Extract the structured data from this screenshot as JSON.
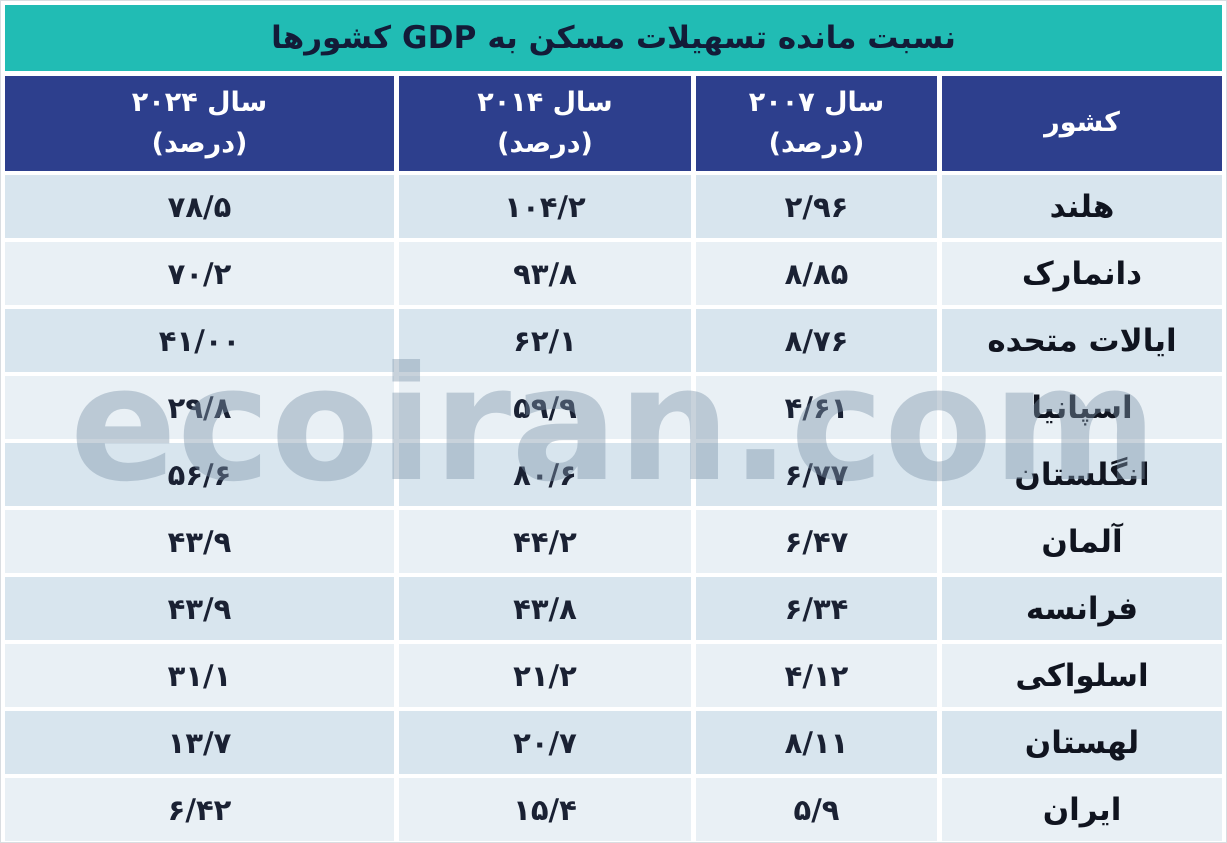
{
  "title": "نسبت مانده تسهیلات مسکن به GDP کشورها",
  "watermark": "ecoiran.com",
  "colors": {
    "title_bg": "#21bcb4",
    "header_bg": "#2d3f8d",
    "row_odd_bg": "#d8e5ee",
    "row_even_bg": "#e9f0f5",
    "title_text": "#131b38",
    "header_text": "#ffffff",
    "cell_text": "#1a2133",
    "country_text": "#10141f",
    "watermark_text": "#7e95aa"
  },
  "table": {
    "columns": [
      {
        "label": "کشور",
        "sublabel": ""
      },
      {
        "label": "سال ۲۰۰۷",
        "sublabel": "(درصد)"
      },
      {
        "label": "سال ۲۰۱۴",
        "sublabel": "(درصد)"
      },
      {
        "label": "سال ۲۰۲۴",
        "sublabel": "(درصد)"
      }
    ],
    "rows": [
      {
        "country": "هلند",
        "y2007": "۲/۹۶",
        "y2014": "۱۰۴/۲",
        "y2024": "۷۸/۵"
      },
      {
        "country": "دانمارک",
        "y2007": "۸/۸۵",
        "y2014": "۹۳/۸",
        "y2024": "۷۰/۲"
      },
      {
        "country": "ایالات متحده",
        "y2007": "۸/۷۶",
        "y2014": "۶۲/۱",
        "y2024": "۴۱/۰۰"
      },
      {
        "country": "اسپانیا",
        "y2007": "۴/۶۱",
        "y2014": "۵۹/۹",
        "y2024": "۲۹/۸"
      },
      {
        "country": "انگلستان",
        "y2007": "۶/۷۷",
        "y2014": "۸۰/۶",
        "y2024": "۵۶/۶"
      },
      {
        "country": "آلمان",
        "y2007": "۶/۴۷",
        "y2014": "۴۴/۲",
        "y2024": "۴۳/۹"
      },
      {
        "country": "فرانسه",
        "y2007": "۶/۳۴",
        "y2014": "۴۳/۸",
        "y2024": "۴۳/۹"
      },
      {
        "country": "اسلواکی",
        "y2007": "۴/۱۲",
        "y2014": "۲۱/۲",
        "y2024": "۳۱/۱"
      },
      {
        "country": "لهستان",
        "y2007": "۸/۱۱",
        "y2014": "۲۰/۷",
        "y2024": "۱۳/۷"
      },
      {
        "country": "ایران",
        "y2007": "۵/۹",
        "y2014": "۱۵/۴",
        "y2024": "۶/۴۲"
      }
    ]
  },
  "chart_data": {
    "type": "table",
    "title": "نسبت مانده تسهیلات مسکن به GDP کشورها",
    "columns": [
      "کشور",
      "سال ۲۰۰۷ (درصد)",
      "سال ۲۰۱۴ (درصد)",
      "سال ۲۰۲۴ (درصد)"
    ],
    "rows": [
      [
        "هلند",
        "۲/۹۶",
        "۱۰۴/۲",
        "۷۸/۵"
      ],
      [
        "دانمارک",
        "۸/۸۵",
        "۹۳/۸",
        "۷۰/۲"
      ],
      [
        "ایالات متحده",
        "۸/۷۶",
        "۶۲/۱",
        "۴۱/۰۰"
      ],
      [
        "اسپانیا",
        "۴/۶۱",
        "۵۹/۹",
        "۲۹/۸"
      ],
      [
        "انگلستان",
        "۶/۷۷",
        "۸۰/۶",
        "۵۶/۶"
      ],
      [
        "آلمان",
        "۶/۴۷",
        "۴۴/۲",
        "۴۳/۹"
      ],
      [
        "فرانسه",
        "۶/۳۴",
        "۴۳/۸",
        "۴۳/۹"
      ],
      [
        "اسلواکی",
        "۴/۱۲",
        "۲۱/۲",
        "۳۱/۱"
      ],
      [
        "لهستان",
        "۸/۱۱",
        "۲۰/۷",
        "۱۳/۷"
      ],
      [
        "ایران",
        "۵/۹",
        "۱۵/۴",
        "۶/۴۲"
      ]
    ],
    "layout": {
      "direction": "rtl",
      "country_column_side": "right",
      "striped_rows": true
    }
  }
}
